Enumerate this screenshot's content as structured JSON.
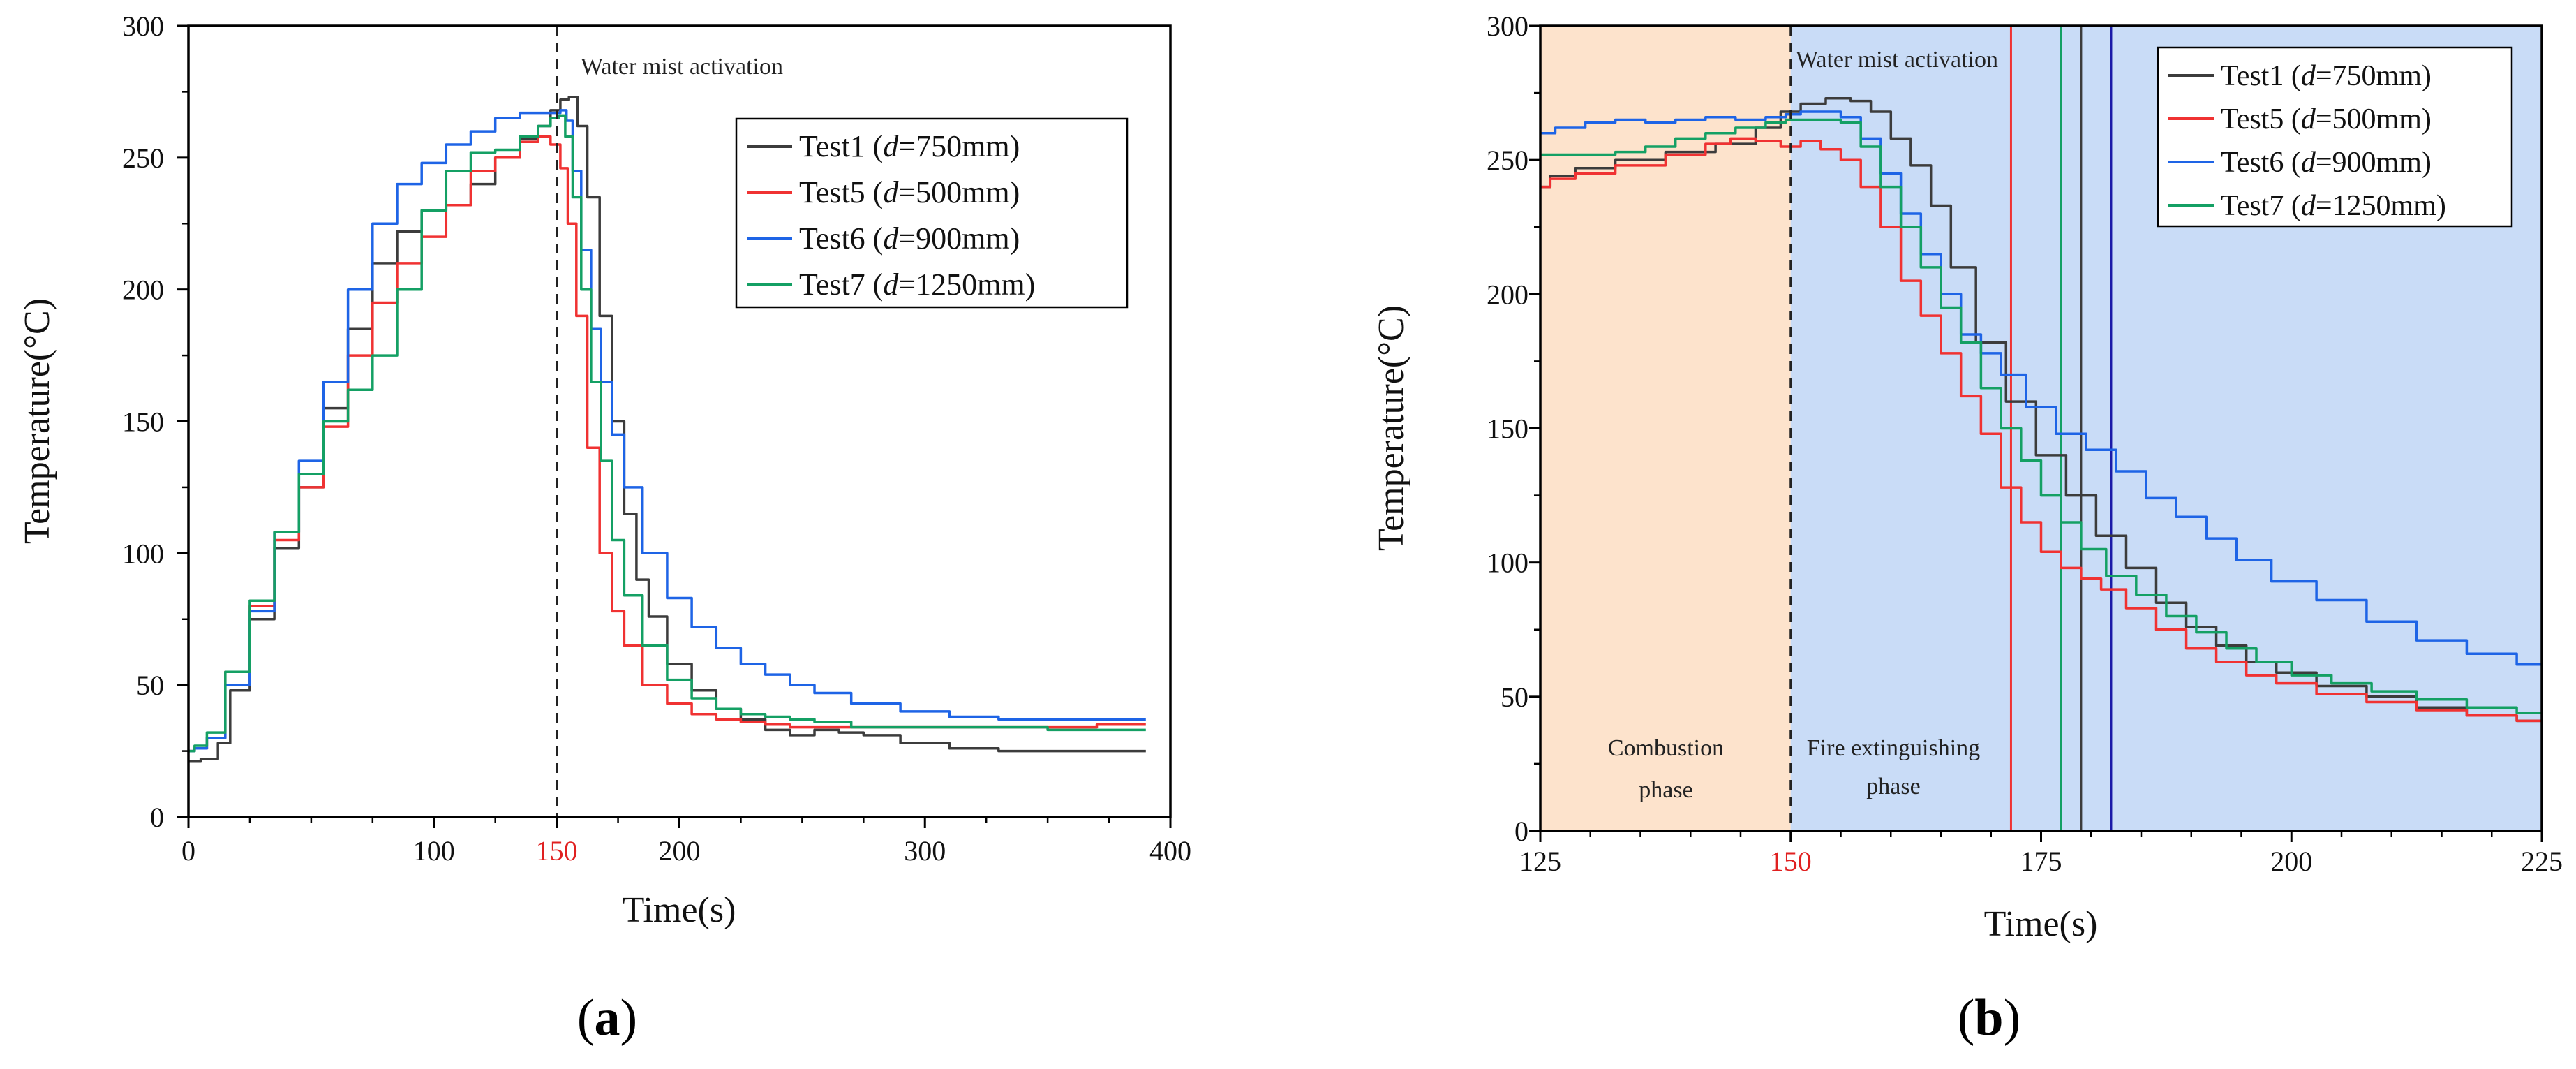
{
  "figure": {
    "panel_a_label_open": "(",
    "panel_a_letter": "a",
    "panel_a_label_close": ")",
    "panel_b_label_open": "(",
    "panel_b_letter": "b",
    "panel_b_label_close": ")"
  },
  "colors": {
    "test1": "#3c3c3c",
    "test5": "#f03232",
    "test6": "#1e64e6",
    "test7": "#14a064",
    "combustion_bg": "#fde3cc",
    "extinguish_bg": "#c9dcf7",
    "highlight_tick": "#e02020",
    "blue_marker": "#1a1aa8"
  },
  "chart_data": [
    {
      "type": "line",
      "panel": "a",
      "xlabel": "Time(s)",
      "ylabel": "Temperature(°C)",
      "xlim": [
        0,
        400
      ],
      "ylim": [
        0,
        300
      ],
      "xticks": [
        0,
        100,
        150,
        200,
        300,
        400
      ],
      "xtick_labels": [
        "0",
        "100",
        "150",
        "200",
        "300",
        "400"
      ],
      "yticks": [
        0,
        50,
        100,
        150,
        200,
        250,
        300
      ],
      "ytick_labels": [
        "0",
        "50",
        "100",
        "150",
        "200",
        "250",
        "300"
      ],
      "highlighted_tick": "150",
      "vline_x": 150,
      "annotation": "Water mist activation",
      "legend_position": "top-right",
      "series": [
        {
          "name": "Test1",
          "d_label": "d",
          "d_value": "=750mm)",
          "legend_prefix": "Test1 (",
          "color_key": "test1",
          "x": [
            0,
            10,
            14,
            20,
            30,
            40,
            50,
            60,
            70,
            80,
            90,
            100,
            110,
            120,
            130,
            140,
            145,
            150,
            153,
            157,
            160,
            165,
            170,
            175,
            180,
            185,
            190,
            200,
            210,
            220,
            230,
            240,
            250,
            260,
            270,
            280,
            300,
            320,
            340,
            360,
            380,
            390
          ],
          "y": [
            21,
            22,
            28,
            48,
            75,
            102,
            125,
            155,
            185,
            210,
            222,
            230,
            232,
            240,
            250,
            257,
            262,
            268,
            272,
            273,
            262,
            235,
            190,
            150,
            115,
            90,
            76,
            58,
            48,
            41,
            37,
            33,
            31,
            33,
            32,
            31,
            28,
            26,
            25,
            25,
            25,
            25
          ]
        },
        {
          "name": "Test5",
          "d_label": "d",
          "d_value": "=500mm)",
          "legend_prefix": "Test5 (",
          "color_key": "test5",
          "x": [
            0,
            5,
            10,
            20,
            30,
            40,
            50,
            60,
            70,
            80,
            90,
            100,
            110,
            120,
            130,
            140,
            145,
            150,
            153,
            156,
            160,
            165,
            170,
            175,
            180,
            190,
            200,
            210,
            220,
            230,
            240,
            250,
            260,
            280,
            300,
            320,
            340,
            360,
            380,
            390
          ],
          "y": [
            25,
            26,
            30,
            55,
            80,
            105,
            125,
            148,
            175,
            195,
            210,
            220,
            232,
            245,
            250,
            256,
            258,
            255,
            246,
            225,
            190,
            140,
            100,
            78,
            65,
            50,
            43,
            39,
            37,
            36,
            35,
            34,
            34,
            34,
            34,
            34,
            34,
            34,
            35,
            35
          ]
        },
        {
          "name": "Test6",
          "d_label": "d",
          "d_value": "=900mm)",
          "legend_prefix": "Test6 (",
          "color_key": "test6",
          "x": [
            0,
            5,
            10,
            20,
            30,
            40,
            50,
            60,
            70,
            80,
            90,
            100,
            110,
            120,
            130,
            140,
            150,
            153,
            155,
            158,
            162,
            166,
            170,
            175,
            180,
            190,
            200,
            210,
            220,
            230,
            240,
            250,
            260,
            280,
            300,
            320,
            340,
            360,
            380,
            390
          ],
          "y": [
            25,
            26,
            30,
            50,
            78,
            108,
            135,
            165,
            200,
            225,
            240,
            248,
            255,
            260,
            265,
            267,
            267,
            268,
            264,
            245,
            215,
            185,
            165,
            145,
            125,
            100,
            83,
            72,
            64,
            58,
            54,
            50,
            47,
            43,
            40,
            38,
            37,
            37,
            37,
            37
          ]
        },
        {
          "name": "Test7",
          "d_label": "d",
          "d_value": "=1250mm)",
          "legend_prefix": "Test7 (",
          "color_key": "test7",
          "x": [
            0,
            5,
            10,
            20,
            30,
            40,
            50,
            60,
            70,
            80,
            90,
            100,
            110,
            120,
            130,
            140,
            145,
            150,
            152,
            155,
            158,
            162,
            166,
            170,
            175,
            180,
            190,
            200,
            210,
            220,
            230,
            240,
            250,
            260,
            280,
            300,
            320,
            340,
            360,
            380,
            390
          ],
          "y": [
            25,
            27,
            32,
            55,
            82,
            108,
            130,
            150,
            162,
            175,
            200,
            230,
            245,
            252,
            253,
            258,
            262,
            265,
            266,
            258,
            235,
            200,
            165,
            135,
            105,
            84,
            65,
            52,
            45,
            41,
            39,
            38,
            37,
            36,
            34,
            34,
            34,
            34,
            33,
            33,
            33
          ]
        }
      ]
    },
    {
      "type": "line",
      "panel": "b",
      "xlabel": "Time(s)",
      "ylabel": "Temperature(°C)",
      "xlim": [
        125,
        225
      ],
      "ylim": [
        0,
        300
      ],
      "xticks": [
        125,
        150,
        175,
        200,
        225
      ],
      "xtick_labels": [
        "125",
        "150",
        "175",
        "200",
        "225"
      ],
      "yticks": [
        0,
        50,
        100,
        150,
        200,
        250,
        300
      ],
      "ytick_labels": [
        "0",
        "50",
        "100",
        "150",
        "200",
        "250",
        "300"
      ],
      "highlighted_tick": "150",
      "vline_x": 150,
      "annotation": "Water mist activation",
      "phases": [
        {
          "label_line1": "Combustion",
          "label_line2": "phase",
          "x_start": 125,
          "x_end": 150,
          "color_key": "combustion_bg"
        },
        {
          "label_line1": "Fire extinguishing",
          "label_line2": "phase",
          "x_start": 150,
          "x_end": 225,
          "color_key": "extinguish_bg"
        }
      ],
      "extinction_lines": [
        {
          "series": "Test5",
          "x": 172,
          "color_key": "test5"
        },
        {
          "series": "Test7",
          "x": 177,
          "color_key": "test7"
        },
        {
          "series": "Test1",
          "x": 179,
          "color_key": "test1"
        },
        {
          "series": "Test6",
          "x": 182,
          "color_key": "blue_marker"
        }
      ],
      "legend_position": "top-right",
      "series": [
        {
          "name": "Test1",
          "d_label": "d",
          "d_value": "=750mm)",
          "legend_prefix": "Test1 (",
          "color_key": "test1",
          "x": [
            125,
            127,
            130,
            135,
            140,
            145,
            148,
            150,
            152,
            155,
            157,
            159,
            161,
            163,
            165,
            167,
            170,
            173,
            176,
            179,
            182,
            185,
            188,
            191,
            194,
            197,
            200,
            205,
            210,
            215,
            220,
            225
          ],
          "y": [
            240,
            244,
            247,
            250,
            253,
            256,
            262,
            268,
            271,
            273,
            272,
            268,
            258,
            248,
            233,
            210,
            182,
            160,
            140,
            125,
            110,
            98,
            85,
            76,
            69,
            63,
            59,
            54,
            50,
            46,
            43,
            41
          ]
        },
        {
          "name": "Test5",
          "d_label": "d",
          "d_value": "=500mm)",
          "legend_prefix": "Test5 (",
          "color_key": "test5",
          "x": [
            125,
            127,
            130,
            135,
            140,
            143,
            145,
            148,
            150,
            152,
            154,
            156,
            158,
            160,
            162,
            164,
            166,
            168,
            170,
            172,
            174,
            176,
            178,
            180,
            182,
            185,
            188,
            191,
            194,
            197,
            200,
            205,
            210,
            215,
            220,
            225
          ],
          "y": [
            240,
            243,
            245,
            248,
            252,
            256,
            258,
            257,
            255,
            257,
            254,
            250,
            240,
            225,
            205,
            192,
            178,
            162,
            148,
            128,
            115,
            104,
            98,
            94,
            90,
            83,
            75,
            68,
            63,
            58,
            55,
            51,
            48,
            45,
            43,
            41
          ]
        },
        {
          "name": "Test6",
          "d_label": "d",
          "d_value": "=900mm)",
          "legend_prefix": "Test6 (",
          "color_key": "test6",
          "x": [
            125,
            128,
            131,
            134,
            137,
            140,
            143,
            146,
            149,
            150,
            152,
            154,
            156,
            158,
            160,
            162,
            164,
            166,
            168,
            170,
            172,
            175,
            178,
            181,
            184,
            187,
            190,
            193,
            196,
            200,
            205,
            210,
            215,
            220,
            225
          ],
          "y": [
            260,
            262,
            264,
            265,
            264,
            265,
            266,
            265,
            266,
            267,
            268,
            268,
            266,
            258,
            245,
            230,
            215,
            200,
            185,
            178,
            170,
            158,
            148,
            142,
            134,
            124,
            117,
            109,
            101,
            93,
            86,
            78,
            71,
            66,
            62
          ]
        },
        {
          "name": "Test7",
          "d_label": "d",
          "d_value": "=1250mm)",
          "legend_prefix": "Test7 (",
          "color_key": "test7",
          "x": [
            125,
            128,
            131,
            134,
            137,
            140,
            143,
            146,
            149,
            150,
            152,
            154,
            156,
            158,
            160,
            162,
            164,
            166,
            168,
            170,
            172,
            174,
            176,
            178,
            180,
            183,
            186,
            189,
            192,
            195,
            198,
            202,
            206,
            210,
            215,
            220,
            225
          ],
          "y": [
            252,
            252,
            252,
            253,
            255,
            258,
            260,
            262,
            264,
            265,
            265,
            265,
            264,
            255,
            240,
            225,
            210,
            195,
            182,
            165,
            150,
            138,
            125,
            115,
            105,
            95,
            88,
            80,
            74,
            68,
            63,
            58,
            55,
            52,
            49,
            46,
            44
          ]
        }
      ]
    }
  ]
}
